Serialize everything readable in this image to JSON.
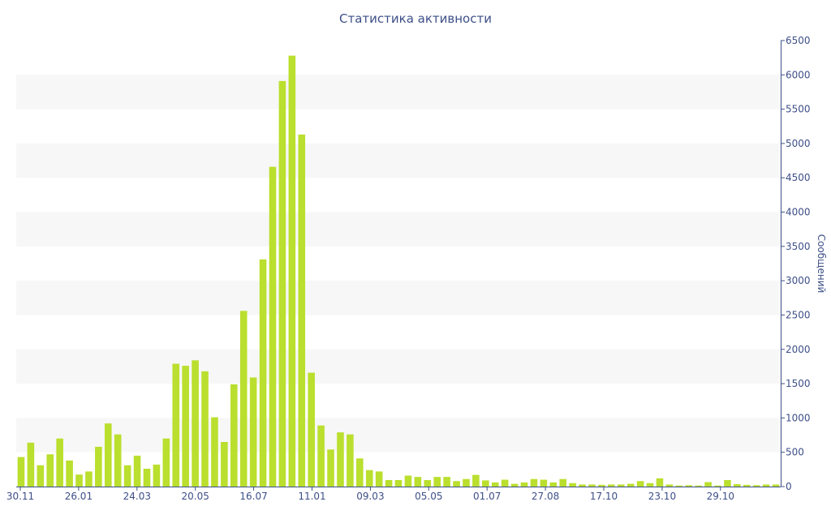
{
  "chart_data": {
    "type": "bar",
    "title": "Статистика активности",
    "ylabel": "Сообщений",
    "ylim": [
      0,
      6500
    ],
    "y_ticks": [
      0,
      500,
      1000,
      1500,
      2000,
      2500,
      3000,
      3500,
      4000,
      4500,
      5000,
      5500,
      6000,
      6500
    ],
    "x_tick_labels": [
      "30.11",
      "26.01",
      "24.03",
      "20.05",
      "16.07",
      "11.01",
      "09.03",
      "05.05",
      "01.07",
      "27.08",
      "17.10",
      "23.10",
      "29.10"
    ],
    "values": [
      430,
      640,
      310,
      470,
      700,
      380,
      175,
      220,
      580,
      920,
      760,
      310,
      450,
      260,
      320,
      700,
      1790,
      1760,
      1840,
      1680,
      1010,
      650,
      1490,
      2560,
      1590,
      3310,
      4660,
      5910,
      6280,
      5130,
      1660,
      890,
      540,
      790,
      760,
      410,
      240,
      220,
      95,
      95,
      160,
      140,
      95,
      140,
      140,
      80,
      110,
      170,
      90,
      60,
      100,
      40,
      60,
      110,
      100,
      60,
      110,
      50,
      30,
      30,
      25,
      30,
      30,
      40,
      80,
      50,
      120,
      30,
      15,
      20,
      15,
      65,
      15,
      95,
      35,
      25,
      20,
      30,
      30
    ],
    "bar_color": "#badf2e",
    "grid_band_color": "#f7f7f7",
    "text_color": "#3d4f88",
    "grid": true,
    "legend": false
  }
}
